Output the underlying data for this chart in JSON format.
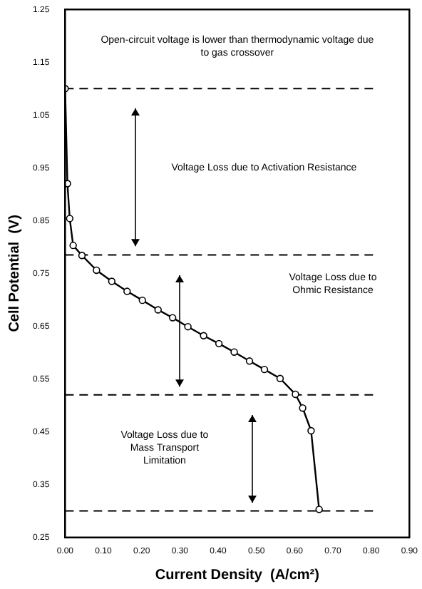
{
  "chart_data": {
    "type": "line",
    "xlabel": "Current Density  (A/cm²)",
    "ylabel": "Cell Potential  (V)",
    "x": [
      0,
      0.006,
      0.012,
      0.021,
      0.044,
      0.082,
      0.122,
      0.162,
      0.202,
      0.243,
      0.281,
      0.321,
      0.362,
      0.402,
      0.442,
      0.482,
      0.521,
      0.562,
      0.602,
      0.621,
      0.643,
      0.664
    ],
    "series": [
      {
        "color": "#000000",
        "values": [
          1.1,
          0.92,
          0.854,
          0.803,
          0.784,
          0.756,
          0.735,
          0.716,
          0.699,
          0.681,
          0.666,
          0.649,
          0.632,
          0.617,
          0.601,
          0.584,
          0.568,
          0.551,
          0.521,
          0.495,
          0.452,
          0.303
        ]
      }
    ],
    "xlim": [
      0,
      0.9
    ],
    "xticks": [
      {
        "value": 0,
        "label": "0.00"
      },
      {
        "value": 0.1,
        "label": "0.10"
      },
      {
        "value": 0.2,
        "label": "0.20"
      },
      {
        "value": 0.3,
        "label": "0.30"
      },
      {
        "value": 0.4,
        "label": "0.40"
      },
      {
        "value": 0.5,
        "label": "0.50"
      },
      {
        "value": 0.6,
        "label": "0.60"
      },
      {
        "value": 0.7,
        "label": "0.70"
      },
      {
        "value": 0.8,
        "label": "0.80"
      },
      {
        "value": 0.9,
        "label": "0.90"
      }
    ],
    "ylim": [
      0.25,
      1.25
    ],
    "yticks": [
      0.25,
      0.35,
      0.45,
      0.55,
      0.65,
      0.75,
      0.85,
      0.95,
      1.05,
      1.15,
      1.25
    ],
    "ref_lines": [
      {
        "axis": "y",
        "value": 1.1,
        "line_style": "dashed"
      },
      {
        "axis": "y",
        "value": 0.785,
        "line_style": "dashed"
      },
      {
        "axis": "y",
        "value": 0.52,
        "line_style": "dashed"
      },
      {
        "axis": "y",
        "value": 0.3,
        "line_style": "dashed"
      }
    ],
    "annotations": [
      "Open-circuit voltage is lower than thermodynamic voltage due\nto gas crossover",
      "Voltage Loss due to Activation Resistance",
      "Voltage Loss due to\nOhmic Resistance",
      "Voltage Loss due to\nMass Transport\nLimitation"
    ],
    "grid": false,
    "legend": false,
    "marker": "circle",
    "line_style": "solid"
  }
}
